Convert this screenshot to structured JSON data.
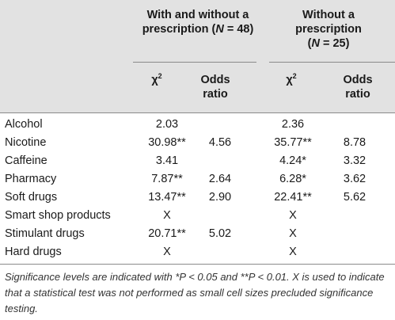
{
  "header": {
    "group1_line1": "With and without a",
    "group1_line2_prefix": "prescription (",
    "group1_n_var": "N",
    "group1_n_rest": " = 48)",
    "group2_line1": "Without a",
    "group2_line2": "prescription",
    "group2_n_var": "N",
    "group2_n_rest": " = 25)",
    "group2_n_open": "(",
    "chi_base": "χ",
    "chi_exp": "2",
    "odds_line1": "Odds",
    "odds_line2": "ratio"
  },
  "rows": [
    {
      "label": "Alcohol",
      "chi1": "2.03",
      "or1": "",
      "chi2": "2.36",
      "or2": ""
    },
    {
      "label": "Nicotine",
      "chi1": "30.98**",
      "or1": "4.56",
      "chi2": "35.77**",
      "or2": "8.78"
    },
    {
      "label": "Caffeine",
      "chi1": "3.41",
      "or1": "",
      "chi2": "4.24*",
      "or2": "3.32"
    },
    {
      "label": "Pharmacy",
      "chi1": "7.87**",
      "or1": "2.64",
      "chi2": "6.28*",
      "or2": "3.62"
    },
    {
      "label": "Soft drugs",
      "chi1": "13.47**",
      "or1": "2.90",
      "chi2": "22.41**",
      "or2": "5.62"
    },
    {
      "label": "Smart shop products",
      "chi1": "X",
      "or1": "",
      "chi2": "X",
      "or2": ""
    },
    {
      "label": "Stimulant drugs",
      "chi1": "20.71**",
      "or1": "5.02",
      "chi2": "X",
      "or2": ""
    },
    {
      "label": "Hard drugs",
      "chi1": "X",
      "or1": "",
      "chi2": "X",
      "or2": ""
    }
  ],
  "footnote": {
    "text": "Significance levels are indicated with *P < 0.05 and **P < 0.01. X is used to indicate that a statistical test was not performed as small cell sizes precluded significance testing."
  }
}
